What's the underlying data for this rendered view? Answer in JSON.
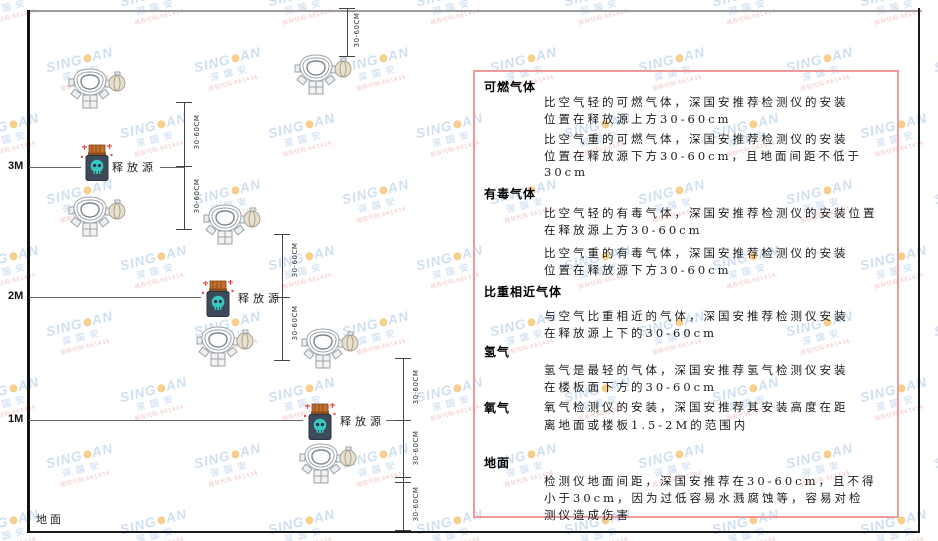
{
  "watermark": {
    "brand_left": "SING",
    "brand_right": "AN",
    "company": "深国安",
    "code_line": "股权代码:661434",
    "dot_color": "#f0a830",
    "text_color": "#a9c6e6"
  },
  "diagram": {
    "height_labels": [
      "3M",
      "2M",
      "1M"
    ],
    "ground_label": "地面",
    "source_label": "释放源",
    "dim_label": "30-60CM",
    "panel_border_color": "#ef9a9a"
  },
  "panel": {
    "sections": [
      {
        "heading": "可燃气体",
        "paragraphs": [
          [
            "比空气轻的可燃气体，深国安推荐检测仪的安装",
            "位置在释放源上方30-60cm"
          ],
          [
            "比空气重的可燃气体，深国安推荐检测仪的安装",
            "位置在释放源下方30-60cm，且地面间距不低于",
            "30cm"
          ]
        ]
      },
      {
        "heading": "有毒气体",
        "paragraphs": [
          [
            "比空气轻的有毒气体，深国安推荐检测仪的安装位置",
            "在释放源上方30-60cm"
          ],
          [
            "比空气重的有毒气体，深国安推荐检测仪的安装",
            "位置在释放源下方30-60cm"
          ]
        ]
      },
      {
        "heading": "比重相近气体",
        "paragraphs": [
          [
            "与空气比重相近的气体，深国安推荐检测仪安装",
            "在释放源上下的30-60cm"
          ]
        ]
      },
      {
        "heading": "氢气",
        "paragraphs": [
          [
            "氢气是最轻的气体，深国安推荐氢气检测仪安装",
            "在楼板面下方的30-60cm"
          ]
        ]
      },
      {
        "heading": "氧气",
        "paragraphs": [
          [
            "氧气检测仪的安装，深国安推荐其安装高度在距",
            "离地面或楼板1.5-2M的范围内"
          ]
        ]
      },
      {
        "heading": "地面",
        "paragraphs": [
          [
            "检测仪地面间距，深国安推荐在30-60cm，且不得",
            "小于30cm，因为过低容易水溅腐蚀等，容易对检",
            "测仪造成伤害"
          ]
        ]
      }
    ]
  }
}
